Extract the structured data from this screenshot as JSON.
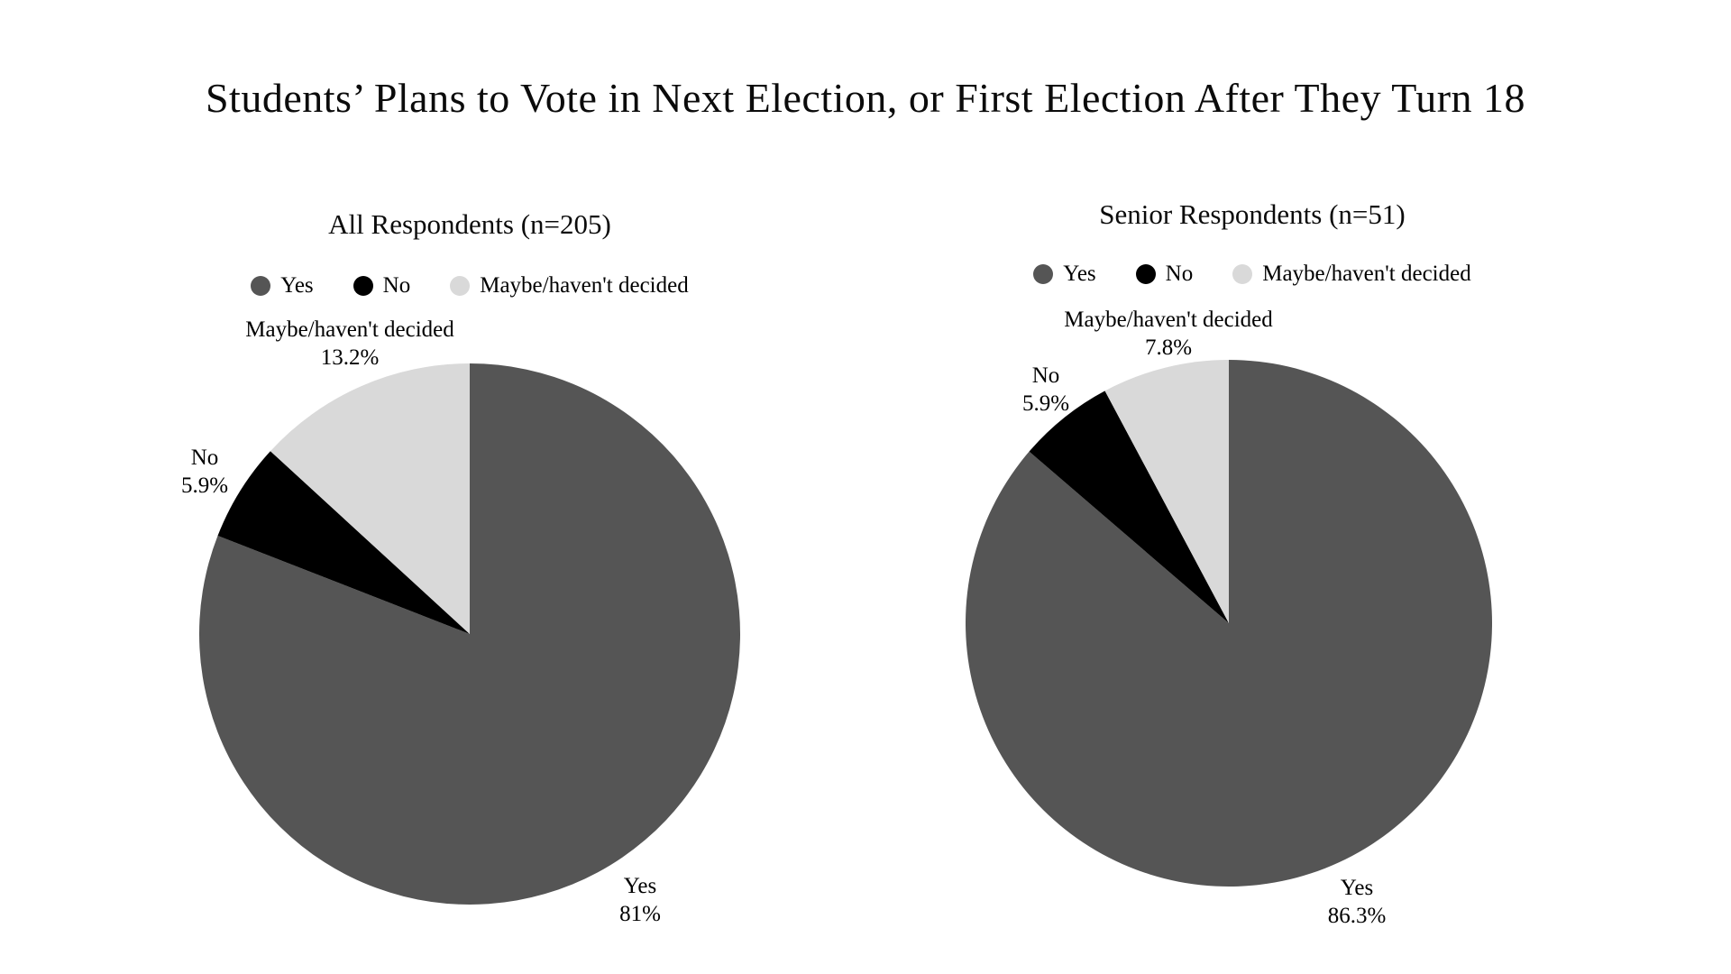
{
  "title": "Students’ Plans to Vote in Next Election, or First Election After They Turn 18",
  "colors": {
    "yes": "#555555",
    "no": "#000000",
    "maybe": "#d9d9d9",
    "background": "#ffffff",
    "text": "#000000"
  },
  "chart_data": [
    {
      "type": "pie",
      "title": "All Respondents (n=205)",
      "categories": [
        "Yes",
        "No",
        "Maybe/haven't decided"
      ],
      "values": [
        81,
        5.9,
        13.2
      ],
      "labels_pct": [
        "81%",
        "5.9%",
        "13.2%"
      ],
      "colors": [
        "#555555",
        "#000000",
        "#d9d9d9"
      ],
      "start_angle_deg": 0,
      "direction": "clockwise",
      "legend_position": "top",
      "legend_entries": [
        "Yes",
        "No",
        "Maybe/haven't decided"
      ]
    },
    {
      "type": "pie",
      "title": "Senior Respondents (n=51)",
      "categories": [
        "Yes",
        "No",
        "Maybe/haven't decided"
      ],
      "values": [
        86.3,
        5.9,
        7.8
      ],
      "labels_pct": [
        "86.3%",
        "5.9%",
        "7.8%"
      ],
      "colors": [
        "#555555",
        "#000000",
        "#d9d9d9"
      ],
      "start_angle_deg": 0,
      "direction": "clockwise",
      "legend_position": "top",
      "legend_entries": [
        "Yes",
        "No",
        "Maybe/haven't decided"
      ]
    }
  ]
}
